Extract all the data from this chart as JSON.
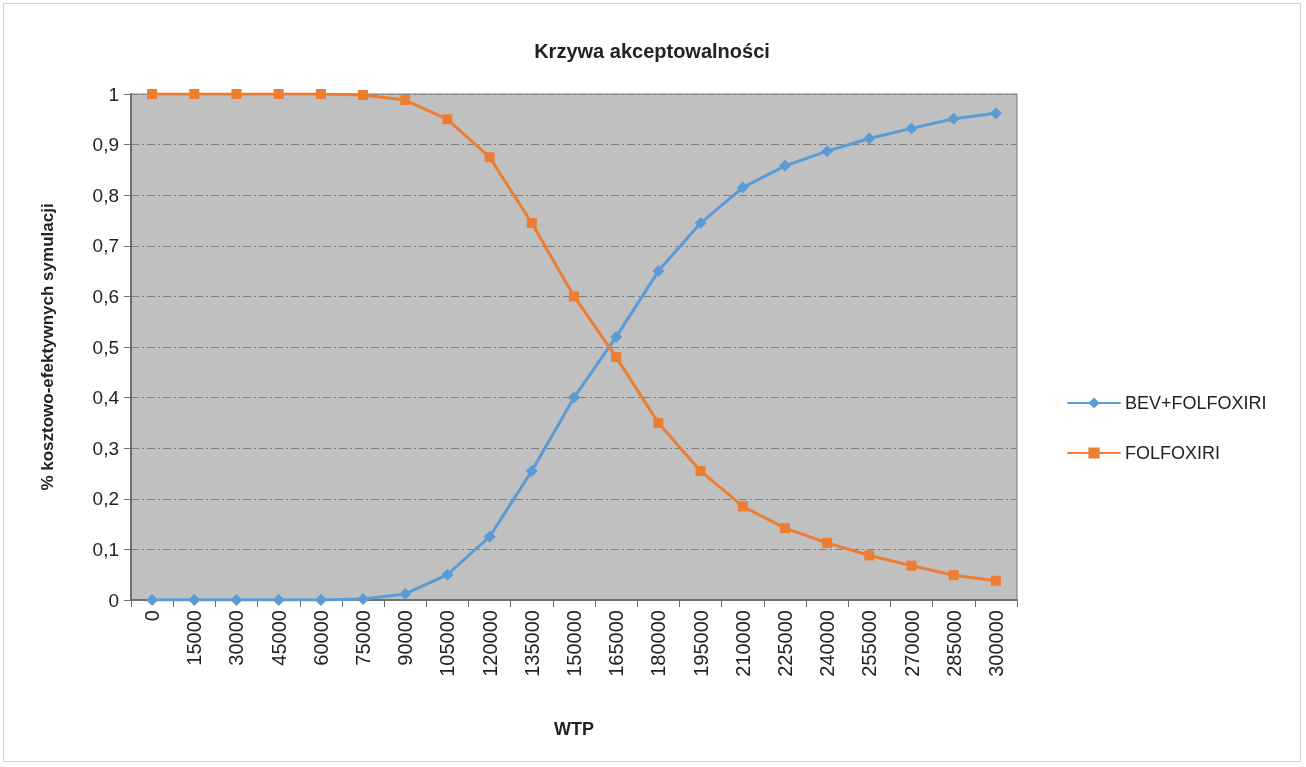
{
  "chart_data": {
    "type": "line",
    "title": "Krzywa akceptowalności",
    "xlabel": "WTP",
    "ylabel": "% kosztowo-efektywnych symulacji",
    "categories": [
      "0",
      "15000",
      "30000",
      "45000",
      "60000",
      "75000",
      "90000",
      "105000",
      "120000",
      "135000",
      "150000",
      "165000",
      "180000",
      "195000",
      "210000",
      "225000",
      "240000",
      "255000",
      "270000",
      "285000",
      "300000"
    ],
    "series": [
      {
        "name": "BEV+FOLFOXIRI",
        "color": "#5b9bd5",
        "marker": "diamond",
        "values": [
          0,
          0,
          0,
          0,
          0,
          0.002,
          0.012,
          0.05,
          0.125,
          0.255,
          0.4,
          0.52,
          0.65,
          0.745,
          0.815,
          0.858,
          0.887,
          0.912,
          0.932,
          0.951,
          0.962
        ]
      },
      {
        "name": "FOLFOXIRI",
        "color": "#ed7d31",
        "marker": "square",
        "values": [
          1,
          1,
          1,
          1,
          1,
          0.998,
          0.988,
          0.95,
          0.875,
          0.745,
          0.6,
          0.48,
          0.35,
          0.255,
          0.185,
          0.142,
          0.113,
          0.088,
          0.068,
          0.049,
          0.038
        ]
      }
    ],
    "ylim": [
      0,
      1
    ],
    "yticks": [
      0,
      {
        "value": 0.1,
        "label": "0,1"
      },
      {
        "value": 0.2,
        "label": "0,2"
      },
      {
        "value": 0.3,
        "label": "0,3"
      },
      {
        "value": 0.4,
        "label": "0,4"
      },
      {
        "value": 0.5,
        "label": "0,5"
      },
      {
        "value": 0.6,
        "label": "0,6"
      },
      {
        "value": 0.7,
        "label": "0,7"
      },
      {
        "value": 0.8,
        "label": "0,8"
      },
      {
        "value": 0.9,
        "label": "0,9"
      },
      1
    ],
    "grid": "y",
    "legend": "right",
    "line_style": "solid"
  }
}
